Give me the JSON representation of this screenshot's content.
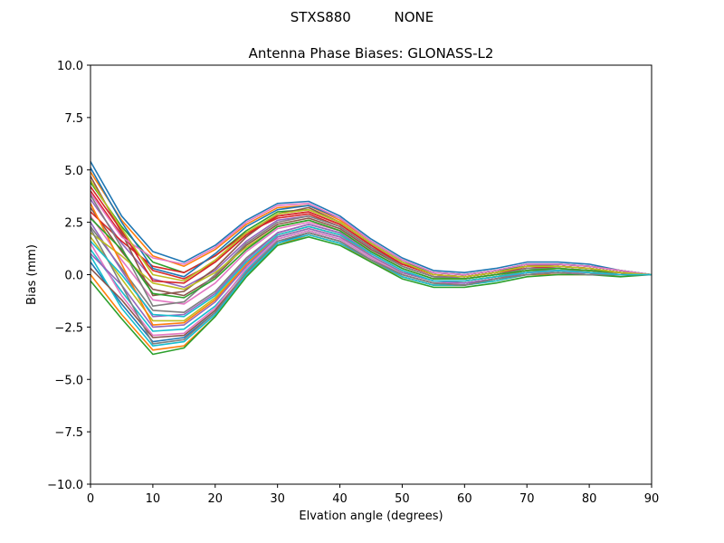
{
  "chart_data": {
    "type": "line",
    "suptitle": "STXS880          NONE",
    "title": "Antenna Phase Biases: GLONASS-L2",
    "xlabel": "Elvation angle (degrees)",
    "ylabel": "Bias (mm)",
    "xlim": [
      0,
      90
    ],
    "ylim": [
      -10,
      10
    ],
    "xticks": [
      0,
      10,
      20,
      30,
      40,
      50,
      60,
      70,
      80,
      90
    ],
    "yticks": [
      -10.0,
      -7.5,
      -5.0,
      -2.5,
      0.0,
      2.5,
      5.0,
      7.5,
      10.0
    ],
    "ytick_labels": [
      "−10.0",
      "−7.5",
      "−5.0",
      "−2.5",
      "0.0",
      "2.5",
      "5.0",
      "7.5",
      "10.0"
    ],
    "grid": false,
    "palette": [
      "#1f77b4",
      "#ff7f0e",
      "#2ca02c",
      "#d62728",
      "#9467bd",
      "#8c564b",
      "#e377c2",
      "#7f7f7f",
      "#bcbd22",
      "#17becf"
    ],
    "x": [
      0,
      5,
      10,
      15,
      20,
      25,
      30,
      35,
      40,
      45,
      50,
      55,
      60,
      65,
      70,
      75,
      80,
      85,
      90
    ],
    "series": [
      {
        "values": [
          5.4,
          2.8,
          1.1,
          0.6,
          1.4,
          2.6,
          3.4,
          3.5,
          2.8,
          1.7,
          0.8,
          0.2,
          0.1,
          0.3,
          0.6,
          0.6,
          0.5,
          0.2,
          0.0
        ]
      },
      {
        "values": [
          4.9,
          2.6,
          0.9,
          0.4,
          1.2,
          2.4,
          3.2,
          3.3,
          2.6,
          1.6,
          0.7,
          0.1,
          0.0,
          0.2,
          0.5,
          0.5,
          0.4,
          0.2,
          0.0
        ]
      },
      {
        "values": [
          4.4,
          2.3,
          0.6,
          0.1,
          0.9,
          2.1,
          3.0,
          3.1,
          2.5,
          1.5,
          0.6,
          0.1,
          0.0,
          0.2,
          0.4,
          0.5,
          0.4,
          0.2,
          0.0
        ]
      },
      {
        "values": [
          4.0,
          1.9,
          0.2,
          -0.2,
          0.6,
          1.9,
          2.8,
          3.0,
          2.4,
          1.4,
          0.5,
          0.0,
          -0.1,
          0.1,
          0.4,
          0.4,
          0.3,
          0.1,
          0.0
        ]
      },
      {
        "values": [
          3.6,
          1.5,
          -0.2,
          -0.6,
          0.2,
          1.6,
          2.6,
          2.8,
          2.3,
          1.3,
          0.4,
          -0.1,
          -0.1,
          0.1,
          0.3,
          0.4,
          0.3,
          0.1,
          0.0
        ]
      },
      {
        "values": [
          3.2,
          1.1,
          -0.7,
          -1.0,
          -0.1,
          1.4,
          2.4,
          2.7,
          2.2,
          1.2,
          0.4,
          -0.1,
          -0.2,
          0.0,
          0.3,
          0.3,
          0.2,
          0.1,
          0.0
        ]
      },
      {
        "values": [
          2.8,
          0.7,
          -1.2,
          -1.4,
          -0.4,
          1.1,
          2.2,
          2.5,
          2.1,
          1.1,
          0.3,
          -0.2,
          -0.2,
          0.0,
          0.2,
          0.3,
          0.2,
          0.1,
          0.0
        ]
      },
      {
        "values": [
          2.3,
          0.3,
          -1.7,
          -1.8,
          -0.8,
          0.8,
          2.0,
          2.4,
          2.0,
          1.0,
          0.2,
          -0.3,
          -0.3,
          -0.1,
          0.2,
          0.2,
          0.2,
          0.0,
          0.0
        ]
      },
      {
        "values": [
          1.8,
          -0.2,
          -2.2,
          -2.2,
          -1.1,
          0.5,
          1.8,
          2.2,
          1.8,
          0.9,
          0.1,
          -0.3,
          -0.3,
          -0.1,
          0.1,
          0.2,
          0.1,
          0.0,
          0.0
        ]
      },
      {
        "values": [
          1.2,
          -0.8,
          -2.7,
          -2.6,
          -1.5,
          0.2,
          1.7,
          2.1,
          1.7,
          0.8,
          0.0,
          -0.4,
          -0.4,
          -0.2,
          0.1,
          0.1,
          0.1,
          0.0,
          0.0
        ]
      },
      {
        "values": [
          0.6,
          -1.4,
          -3.2,
          -3.0,
          -1.8,
          0.0,
          1.5,
          2.0,
          1.6,
          0.7,
          -0.1,
          -0.5,
          -0.5,
          -0.2,
          0.0,
          0.1,
          0.0,
          0.0,
          0.0
        ]
      },
      {
        "values": [
          0.0,
          -1.9,
          -3.6,
          -3.4,
          -2.0,
          -0.1,
          1.4,
          1.9,
          1.5,
          0.6,
          -0.1,
          -0.5,
          -0.5,
          -0.3,
          0.0,
          0.0,
          0.0,
          0.0,
          0.0
        ]
      },
      {
        "values": [
          -0.3,
          -2.1,
          -3.8,
          -3.5,
          -2.0,
          -0.1,
          1.4,
          1.8,
          1.4,
          0.6,
          -0.2,
          -0.6,
          -0.6,
          -0.4,
          -0.1,
          0.0,
          0.0,
          -0.1,
          0.0
        ]
      },
      {
        "values": [
          3.0,
          1.6,
          0.4,
          0.1,
          0.9,
          2.0,
          2.7,
          2.9,
          2.3,
          1.3,
          0.5,
          0.0,
          -0.1,
          0.1,
          0.3,
          0.4,
          0.3,
          0.1,
          0.0
        ]
      },
      {
        "values": [
          2.5,
          0.2,
          -2.0,
          -1.9,
          -0.9,
          0.7,
          2.0,
          2.4,
          2.0,
          1.0,
          0.2,
          -0.3,
          -0.3,
          -0.1,
          0.1,
          0.2,
          0.1,
          0.0,
          0.0
        ]
      },
      {
        "values": [
          4.7,
          2.0,
          -1.0,
          -0.8,
          0.3,
          1.8,
          2.9,
          3.2,
          2.5,
          1.5,
          0.6,
          0.0,
          -0.1,
          0.1,
          0.4,
          0.5,
          0.4,
          0.2,
          0.0
        ]
      },
      {
        "values": [
          1.5,
          -1.0,
          -2.9,
          -2.8,
          -1.6,
          0.3,
          1.7,
          2.1,
          1.7,
          0.8,
          0.0,
          -0.4,
          -0.4,
          -0.2,
          0.1,
          0.1,
          0.1,
          0.0,
          0.0
        ]
      },
      {
        "values": [
          3.8,
          1.3,
          -1.5,
          -1.3,
          0.0,
          1.5,
          2.5,
          2.8,
          2.3,
          1.3,
          0.4,
          -0.1,
          -0.2,
          0.0,
          0.3,
          0.3,
          0.2,
          0.1,
          0.0
        ]
      },
      {
        "values": [
          2.0,
          0.9,
          -0.4,
          -0.7,
          0.1,
          1.3,
          2.3,
          2.6,
          2.1,
          1.1,
          0.3,
          -0.2,
          -0.2,
          0.0,
          0.2,
          0.3,
          0.2,
          0.1,
          0.0
        ]
      },
      {
        "values": [
          0.9,
          -1.6,
          -3.4,
          -3.2,
          -1.9,
          0.0,
          1.5,
          1.9,
          1.5,
          0.7,
          -0.1,
          -0.5,
          -0.5,
          -0.3,
          0.0,
          0.1,
          0.0,
          0.0,
          0.0
        ]
      },
      {
        "values": [
          5.1,
          2.5,
          0.3,
          -0.1,
          1.0,
          2.3,
          3.1,
          3.3,
          2.7,
          1.6,
          0.7,
          0.1,
          0.0,
          0.2,
          0.5,
          0.5,
          0.4,
          0.2,
          0.0
        ]
      },
      {
        "values": [
          3.4,
          0.5,
          -2.4,
          -2.3,
          -1.2,
          0.5,
          1.9,
          2.3,
          1.9,
          0.9,
          0.1,
          -0.3,
          -0.3,
          -0.1,
          0.1,
          0.2,
          0.1,
          0.0,
          0.0
        ]
      },
      {
        "values": [
          2.7,
          1.2,
          -0.9,
          -1.1,
          -0.2,
          1.2,
          2.3,
          2.6,
          2.1,
          1.1,
          0.3,
          -0.2,
          -0.2,
          0.0,
          0.2,
          0.3,
          0.2,
          0.1,
          0.0
        ]
      },
      {
        "values": [
          4.2,
          2.1,
          -0.3,
          -0.4,
          0.6,
          1.9,
          2.8,
          3.0,
          2.4,
          1.4,
          0.5,
          0.0,
          -0.1,
          0.1,
          0.4,
          0.4,
          0.3,
          0.1,
          0.0
        ]
      },
      {
        "values": [
          1.0,
          -0.5,
          -2.5,
          -2.4,
          -1.3,
          0.4,
          1.8,
          2.2,
          1.8,
          0.9,
          0.1,
          -0.3,
          -0.4,
          -0.2,
          0.1,
          0.2,
          0.1,
          0.0,
          0.0
        ]
      },
      {
        "values": [
          0.3,
          -1.2,
          -3.0,
          -2.9,
          -1.7,
          0.1,
          1.6,
          2.0,
          1.6,
          0.7,
          0.0,
          -0.4,
          -0.5,
          -0.2,
          0.0,
          0.1,
          0.0,
          0.0,
          0.0
        ]
      },
      {
        "values": [
          3.9,
          1.8,
          0.8,
          0.5,
          1.3,
          2.5,
          3.3,
          3.4,
          2.7,
          1.6,
          0.7,
          0.1,
          0.0,
          0.2,
          0.5,
          0.5,
          0.4,
          0.2,
          0.0
        ]
      },
      {
        "values": [
          2.2,
          -0.5,
          -3.3,
          -3.1,
          -1.8,
          0.1,
          1.6,
          2.0,
          1.6,
          0.7,
          0.0,
          -0.4,
          -0.5,
          -0.2,
          0.0,
          0.1,
          0.0,
          0.0,
          0.0
        ]
      },
      {
        "values": [
          4.5,
          2.2,
          0.0,
          -0.3,
          0.7,
          2.0,
          2.9,
          3.1,
          2.5,
          1.5,
          0.6,
          0.0,
          -0.1,
          0.1,
          0.4,
          0.4,
          0.3,
          0.1,
          0.0
        ]
      },
      {
        "values": [
          1.6,
          0.0,
          -1.9,
          -2.0,
          -1.0,
          0.6,
          1.9,
          2.3,
          1.9,
          1.0,
          0.2,
          -0.3,
          -0.3,
          -0.1,
          0.1,
          0.2,
          0.1,
          0.0,
          0.0
        ]
      }
    ]
  }
}
